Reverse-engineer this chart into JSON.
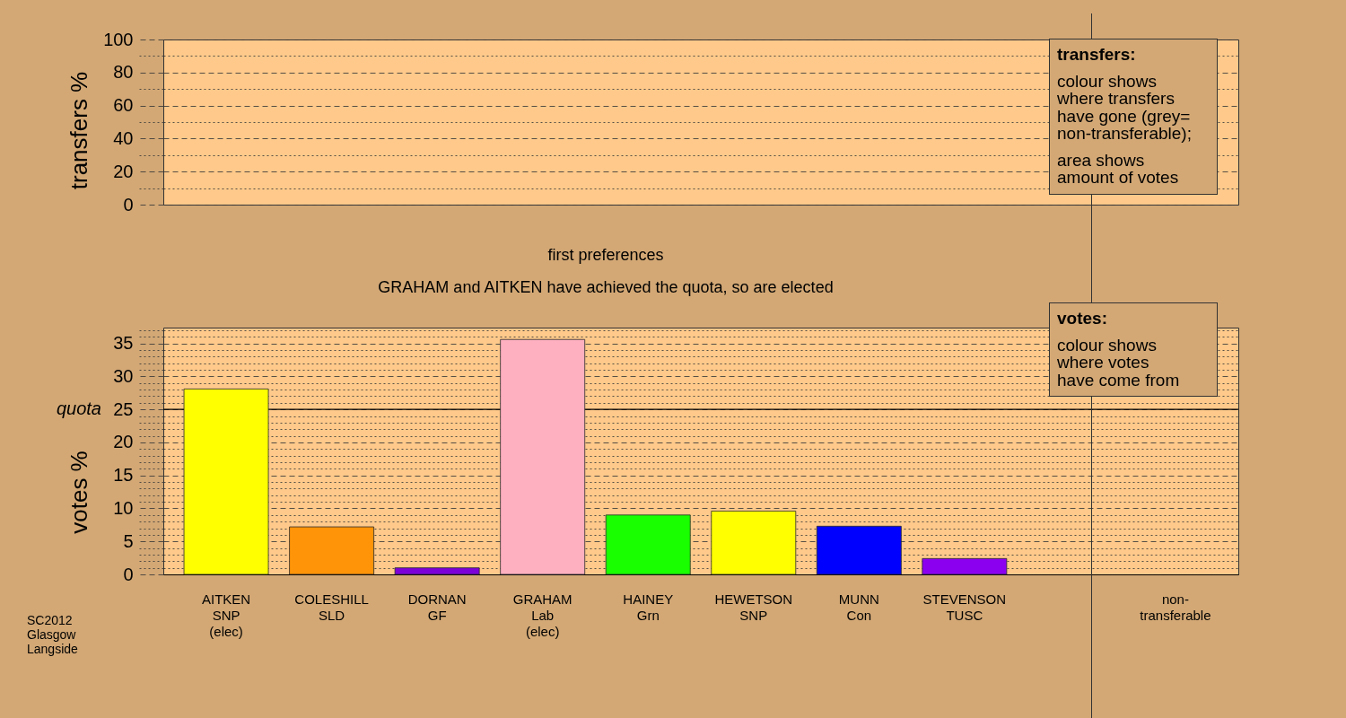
{
  "chart_data": [
    {
      "type": "bar",
      "ylabel": "transfers %",
      "annotations": [
        "transfers:",
        "colour shows\nwhere transfers\nhave gone (grey=\nnon-transferable);",
        "area shows\namount of votes"
      ],
      "categories": [
        null,
        null,
        null,
        null,
        null,
        null,
        null,
        null,
        null,
        null
      ],
      "values": [
        null,
        null,
        null,
        null,
        null,
        null,
        null,
        null,
        null,
        null
      ],
      "ylim": [
        0,
        100
      ],
      "yticks": [
        0,
        {
          "value": 10,
          "label": null
        },
        20,
        {
          "value": 30,
          "label": null
        },
        40,
        {
          "value": 50,
          "label": null
        },
        60,
        {
          "value": 70,
          "label": null
        },
        80,
        {
          "value": 90,
          "label": null
        },
        100
      ],
      "grid": "y",
      "tick_labels": "y"
    },
    {
      "type": "bar",
      "title": "first preferences",
      "subtitle": "GRAHAM and AITKEN have achieved the quota, so are elected",
      "ylabel": "votes %",
      "annotations": [
        "votes:",
        "colour shows\nwhere votes\nhave come from"
      ],
      "categories": [
        "AITKEN\nSNP\n(elec)",
        "COLESHILL\nSLD",
        "DORNAN\nGF",
        "GRAHAM\nLab\n(elec)",
        "HAINEY\nGrn",
        "HEWETSON\nSNP",
        "MUNN\nCon",
        "STEVENSON\nTUSC",
        null,
        "non-\ntransferable"
      ],
      "values": [
        28.1,
        7.2,
        1.0,
        35.6,
        9.0,
        9.6,
        7.3,
        2.4,
        null,
        null
      ],
      "colors": [
        "#ffff00",
        "#ff9408",
        "#7c00d8",
        "#ffb0c0",
        "#1aff00",
        "#ffff00",
        "#0000ff",
        "#8c00f0",
        null,
        null
      ],
      "ylim": [
        0,
        37.4
      ],
      "yticks": [
        0,
        {
          "value": 1,
          "label": null
        },
        {
          "value": 2,
          "label": null
        },
        {
          "value": 3,
          "label": null
        },
        {
          "value": 4,
          "label": null
        },
        5,
        {
          "value": 6,
          "label": null
        },
        {
          "value": 7,
          "label": null
        },
        {
          "value": 8,
          "label": null
        },
        {
          "value": 9,
          "label": null
        },
        10,
        {
          "value": 11,
          "label": null
        },
        {
          "value": 12,
          "label": null
        },
        {
          "value": 13,
          "label": null
        },
        {
          "value": 14,
          "label": null
        },
        15,
        {
          "value": 16,
          "label": null
        },
        {
          "value": 17,
          "label": null
        },
        {
          "value": 18,
          "label": null
        },
        {
          "value": 19,
          "label": null
        },
        20,
        {
          "value": 21,
          "label": null
        },
        {
          "value": 22,
          "label": null
        },
        {
          "value": 23,
          "label": null
        },
        {
          "value": 24,
          "label": null
        },
        25,
        {
          "value": 26,
          "label": null
        },
        {
          "value": 27,
          "label": null
        },
        {
          "value": 28,
          "label": null
        },
        {
          "value": 29,
          "label": null
        },
        30,
        {
          "value": 31,
          "label": null
        },
        {
          "value": 32,
          "label": null
        },
        {
          "value": 33,
          "label": null
        },
        {
          "value": 34,
          "label": null
        },
        35,
        {
          "value": 36,
          "label": null
        },
        {
          "value": 37,
          "label": null
        }
      ],
      "grid": "y",
      "ref_lines": [
        {
          "axis": "y",
          "value": 25,
          "label": "quota"
        }
      ]
    },
    {
      "type": "other",
      "annotations": [
        "SC2012\nGlasgow\nLangside"
      ]
    }
  ]
}
